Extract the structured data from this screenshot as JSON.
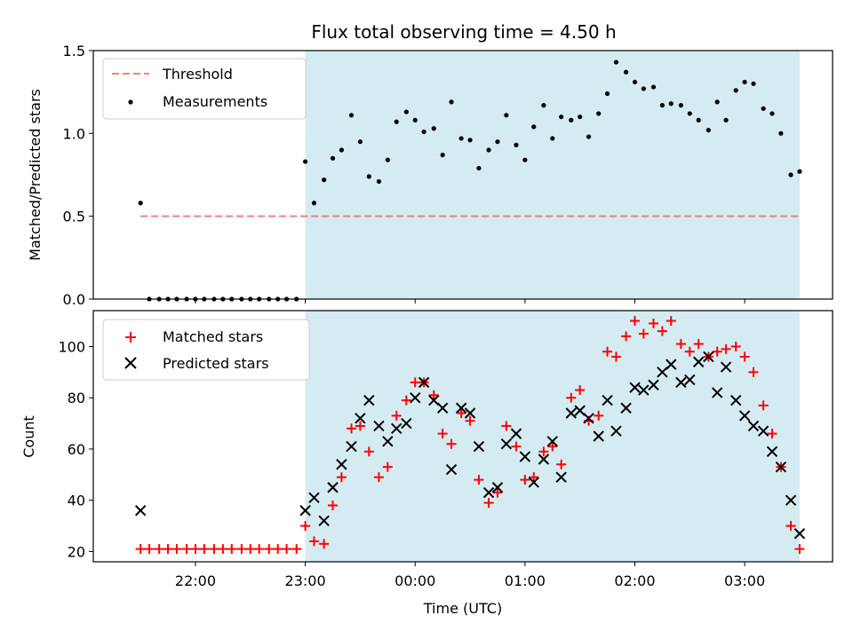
{
  "chart_data": [
    {
      "type": "scatter",
      "title": "Flux total observing time = 4.50 h",
      "xlabel": "",
      "ylabel": "Matched/Predicted stars",
      "ylim": [
        0,
        1.5
      ],
      "yticks": [
        "0.0",
        "0.5",
        "1.0",
        "1.5"
      ],
      "highlight_span": {
        "start": 23.0,
        "end": 27.5,
        "color": "#d4ebf2"
      },
      "threshold": {
        "name": "Threshold",
        "value": 0.5,
        "x_range": [
          21.5,
          27.5
        ],
        "color": "#f08080"
      },
      "legend": {
        "location": "upper-left",
        "entries": [
          "Threshold",
          "Measurements"
        ]
      },
      "series": [
        {
          "name": "Measurements",
          "color": "#000000",
          "marker": "dot",
          "points": [
            [
              21.5,
              0.58
            ],
            [
              21.58,
              0
            ],
            [
              21.67,
              0
            ],
            [
              21.75,
              0
            ],
            [
              21.83,
              0
            ],
            [
              21.92,
              0
            ],
            [
              22.0,
              0
            ],
            [
              22.08,
              0
            ],
            [
              22.17,
              0
            ],
            [
              22.25,
              0
            ],
            [
              22.33,
              0
            ],
            [
              22.42,
              0
            ],
            [
              22.5,
              0
            ],
            [
              22.58,
              0
            ],
            [
              22.67,
              0
            ],
            [
              22.75,
              0
            ],
            [
              22.83,
              0
            ],
            [
              22.92,
              0
            ],
            [
              23.0,
              0.83
            ],
            [
              23.08,
              0.58
            ],
            [
              23.17,
              0.72
            ],
            [
              23.25,
              0.85
            ],
            [
              23.33,
              0.9
            ],
            [
              23.42,
              1.11
            ],
            [
              23.5,
              0.95
            ],
            [
              23.58,
              0.74
            ],
            [
              23.67,
              0.71
            ],
            [
              23.75,
              0.84
            ],
            [
              23.83,
              1.07
            ],
            [
              23.92,
              1.13
            ],
            [
              24.0,
              1.08
            ],
            [
              24.08,
              1.01
            ],
            [
              24.17,
              1.03
            ],
            [
              24.25,
              0.87
            ],
            [
              24.33,
              1.19
            ],
            [
              24.42,
              0.97
            ],
            [
              24.5,
              0.96
            ],
            [
              24.58,
              0.79
            ],
            [
              24.67,
              0.9
            ],
            [
              24.75,
              0.95
            ],
            [
              24.83,
              1.11
            ],
            [
              24.92,
              0.93
            ],
            [
              25.0,
              0.84
            ],
            [
              25.08,
              1.04
            ],
            [
              25.17,
              1.17
            ],
            [
              25.25,
              0.97
            ],
            [
              25.33,
              1.1
            ],
            [
              25.42,
              1.08
            ],
            [
              25.5,
              1.1
            ],
            [
              25.58,
              0.98
            ],
            [
              25.67,
              1.12
            ],
            [
              25.75,
              1.24
            ],
            [
              25.83,
              1.43
            ],
            [
              25.92,
              1.37
            ],
            [
              26.0,
              1.31
            ],
            [
              26.08,
              1.27
            ],
            [
              26.17,
              1.28
            ],
            [
              26.25,
              1.17
            ],
            [
              26.33,
              1.18
            ],
            [
              26.42,
              1.17
            ],
            [
              26.5,
              1.12
            ],
            [
              26.58,
              1.08
            ],
            [
              26.67,
              1.02
            ],
            [
              26.75,
              1.19
            ],
            [
              26.83,
              1.08
            ],
            [
              26.92,
              1.26
            ],
            [
              27.0,
              1.31
            ],
            [
              27.08,
              1.3
            ],
            [
              27.17,
              1.15
            ],
            [
              27.25,
              1.12
            ],
            [
              27.33,
              1.0
            ],
            [
              27.42,
              0.75
            ],
            [
              27.5,
              0.77
            ]
          ]
        }
      ]
    },
    {
      "type": "scatter",
      "xlabel": "Time (UTC)",
      "ylabel": "Count",
      "ylim": [
        16,
        114
      ],
      "yticks": [
        "20",
        "40",
        "60",
        "80",
        "100"
      ],
      "xticks": [
        "22:00",
        "23:00",
        "00:00",
        "01:00",
        "02:00",
        "03:00"
      ],
      "highlight_span": {
        "start": 23.0,
        "end": 27.5,
        "color": "#d4ebf2"
      },
      "legend": {
        "location": "upper-left",
        "entries": [
          "Matched stars",
          "Predicted stars"
        ]
      },
      "series": [
        {
          "name": "Matched stars",
          "color": "#ff0000",
          "marker": "plus",
          "points": [
            [
              21.5,
              21
            ],
            [
              21.58,
              21
            ],
            [
              21.67,
              21
            ],
            [
              21.75,
              21
            ],
            [
              21.83,
              21
            ],
            [
              21.92,
              21
            ],
            [
              22.0,
              21
            ],
            [
              22.08,
              21
            ],
            [
              22.17,
              21
            ],
            [
              22.25,
              21
            ],
            [
              22.33,
              21
            ],
            [
              22.42,
              21
            ],
            [
              22.5,
              21
            ],
            [
              22.58,
              21
            ],
            [
              22.67,
              21
            ],
            [
              22.75,
              21
            ],
            [
              22.83,
              21
            ],
            [
              22.92,
              21
            ],
            [
              23.0,
              30
            ],
            [
              23.08,
              24
            ],
            [
              23.17,
              23
            ],
            [
              23.25,
              38
            ],
            [
              23.33,
              49
            ],
            [
              23.42,
              68
            ],
            [
              23.5,
              69
            ],
            [
              23.58,
              59
            ],
            [
              23.67,
              49
            ],
            [
              23.75,
              53
            ],
            [
              23.83,
              73
            ],
            [
              23.92,
              79
            ],
            [
              24.0,
              86
            ],
            [
              24.08,
              86
            ],
            [
              24.17,
              81
            ],
            [
              24.25,
              66
            ],
            [
              24.33,
              62
            ],
            [
              24.42,
              74
            ],
            [
              24.5,
              71
            ],
            [
              24.58,
              48
            ],
            [
              24.67,
              39
            ],
            [
              24.75,
              43
            ],
            [
              24.83,
              69
            ],
            [
              24.92,
              61
            ],
            [
              25.0,
              48
            ],
            [
              25.08,
              49
            ],
            [
              25.17,
              59
            ],
            [
              25.25,
              61
            ],
            [
              25.33,
              54
            ],
            [
              25.42,
              80
            ],
            [
              25.5,
              83
            ],
            [
              25.58,
              71
            ],
            [
              25.67,
              73
            ],
            [
              25.75,
              98
            ],
            [
              25.83,
              96
            ],
            [
              25.92,
              104
            ],
            [
              26.0,
              110
            ],
            [
              26.08,
              105
            ],
            [
              26.17,
              109
            ],
            [
              26.25,
              106
            ],
            [
              26.33,
              110
            ],
            [
              26.42,
              101
            ],
            [
              26.5,
              98
            ],
            [
              26.58,
              101
            ],
            [
              26.67,
              96
            ],
            [
              26.75,
              98
            ],
            [
              26.83,
              99
            ],
            [
              26.92,
              100
            ],
            [
              27.0,
              96
            ],
            [
              27.08,
              90
            ],
            [
              27.17,
              77
            ],
            [
              27.25,
              66
            ],
            [
              27.33,
              53
            ],
            [
              27.42,
              30
            ],
            [
              27.5,
              21
            ]
          ]
        },
        {
          "name": "Predicted stars",
          "color": "#000000",
          "marker": "x",
          "points": [
            [
              21.5,
              36
            ],
            [
              23.0,
              36
            ],
            [
              23.08,
              41
            ],
            [
              23.17,
              32
            ],
            [
              23.25,
              45
            ],
            [
              23.33,
              54
            ],
            [
              23.42,
              61
            ],
            [
              23.5,
              72
            ],
            [
              23.58,
              79
            ],
            [
              23.67,
              69
            ],
            [
              23.75,
              63
            ],
            [
              23.83,
              68
            ],
            [
              23.92,
              70
            ],
            [
              24.0,
              80
            ],
            [
              24.08,
              86
            ],
            [
              24.17,
              79
            ],
            [
              24.25,
              76
            ],
            [
              24.33,
              52
            ],
            [
              24.42,
              76
            ],
            [
              24.5,
              74
            ],
            [
              24.58,
              61
            ],
            [
              24.67,
              43
            ],
            [
              24.75,
              45
            ],
            [
              24.83,
              62
            ],
            [
              24.92,
              66
            ],
            [
              25.0,
              57
            ],
            [
              25.08,
              47
            ],
            [
              25.17,
              56
            ],
            [
              25.25,
              63
            ],
            [
              25.33,
              49
            ],
            [
              25.42,
              74
            ],
            [
              25.5,
              75
            ],
            [
              25.58,
              72
            ],
            [
              25.67,
              65
            ],
            [
              25.75,
              79
            ],
            [
              25.83,
              67
            ],
            [
              25.92,
              76
            ],
            [
              26.0,
              84
            ],
            [
              26.08,
              83
            ],
            [
              26.17,
              85
            ],
            [
              26.25,
              90
            ],
            [
              26.33,
              93
            ],
            [
              26.42,
              86
            ],
            [
              26.5,
              87
            ],
            [
              26.58,
              94
            ],
            [
              26.67,
              96
            ],
            [
              26.75,
              82
            ],
            [
              26.83,
              92
            ],
            [
              26.92,
              79
            ],
            [
              27.0,
              73
            ],
            [
              27.08,
              69
            ],
            [
              27.17,
              67
            ],
            [
              27.25,
              59
            ],
            [
              27.33,
              53
            ],
            [
              27.42,
              40
            ],
            [
              27.5,
              27
            ]
          ]
        }
      ]
    }
  ]
}
